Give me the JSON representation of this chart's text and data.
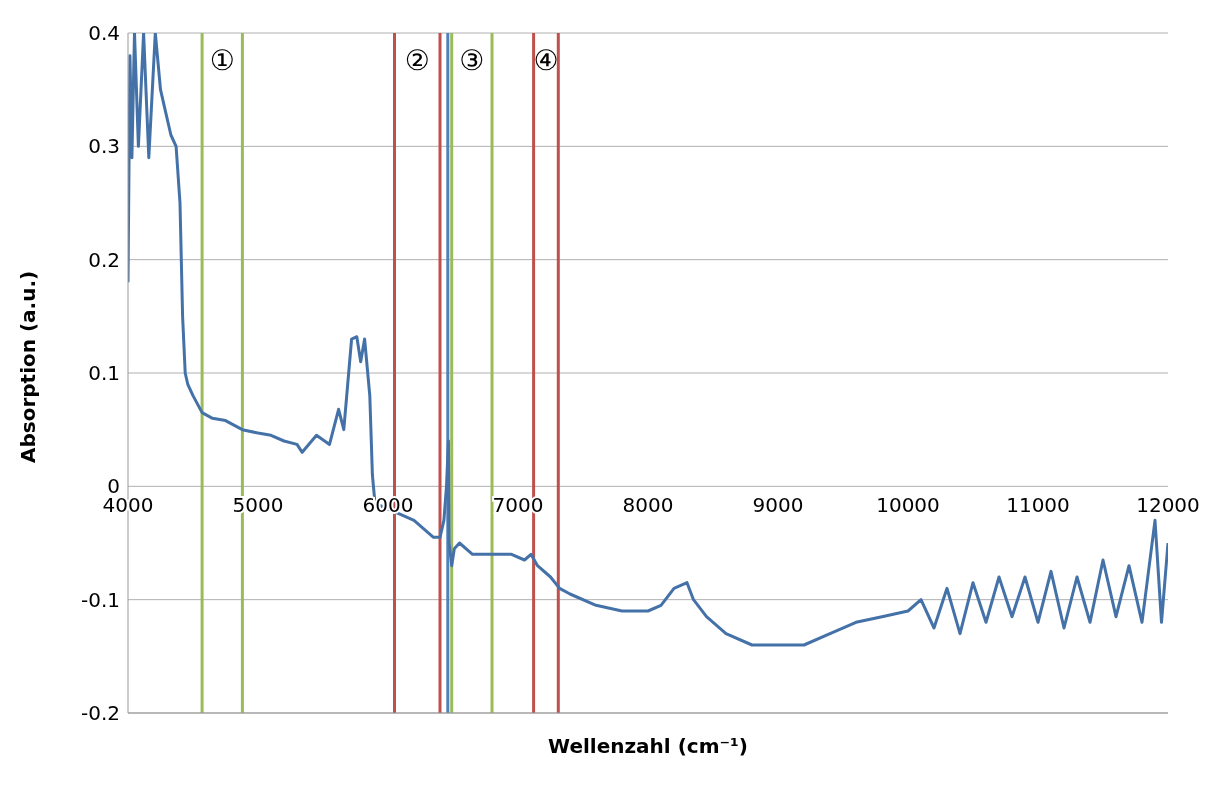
{
  "chart_data": {
    "type": "line",
    "xlabel": "Wellenzahl (cm⁻¹)",
    "ylabel": "Absorption (a.u.)",
    "x": [
      4000,
      4015,
      4030,
      4050,
      4080,
      4120,
      4160,
      4210,
      4250,
      4290,
      4330,
      4370,
      4400,
      4420,
      4440,
      4460,
      4500,
      4570,
      4650,
      4750,
      4880,
      5000,
      5100,
      5200,
      5300,
      5340,
      5450,
      5550,
      5620,
      5660,
      5720,
      5760,
      5790,
      5820,
      5860,
      5880,
      5900,
      6000,
      6100,
      6200,
      6350,
      6400,
      6430,
      6450,
      6465,
      6470,
      6490,
      6510,
      6550,
      6650,
      6800,
      6950,
      7050,
      7100,
      7150,
      7250,
      7320,
      7400,
      7600,
      7800,
      8000,
      8100,
      8200,
      8300,
      8350,
      8450,
      8600,
      8800,
      9000,
      9200,
      9400,
      9600,
      9800,
      10000,
      10100,
      10200,
      10300,
      10400,
      10500,
      10600,
      10700,
      10800,
      10900,
      11000,
      11100,
      11200,
      11300,
      11400,
      11500,
      11600,
      11700,
      11800,
      11900,
      11950,
      12000
    ],
    "series": [
      {
        "color": "#4472a8",
        "values": [
          0.18,
          0.38,
          0.29,
          0.4,
          0.3,
          0.4,
          0.29,
          0.4,
          0.35,
          0.33,
          0.31,
          0.3,
          0.25,
          0.15,
          0.1,
          0.09,
          0.08,
          0.065,
          0.06,
          0.058,
          0.05,
          0.047,
          0.045,
          0.04,
          0.037,
          0.03,
          0.045,
          0.037,
          0.068,
          0.05,
          0.13,
          0.132,
          0.11,
          0.13,
          0.08,
          0.01,
          -0.015,
          -0.02,
          -0.025,
          -0.03,
          -0.045,
          -0.045,
          -0.03,
          0.0,
          0.04,
          -0.05,
          -0.07,
          -0.055,
          -0.05,
          -0.06,
          -0.06,
          -0.06,
          -0.065,
          -0.06,
          -0.07,
          -0.08,
          -0.09,
          -0.095,
          -0.105,
          -0.11,
          -0.11,
          -0.105,
          -0.09,
          -0.085,
          -0.1,
          -0.115,
          -0.13,
          -0.14,
          -0.14,
          -0.14,
          -0.13,
          -0.12,
          -0.115,
          -0.11,
          -0.1,
          -0.125,
          -0.09,
          -0.13,
          -0.085,
          -0.12,
          -0.08,
          -0.115,
          -0.08,
          -0.12,
          -0.075,
          -0.125,
          -0.08,
          -0.12,
          -0.065,
          -0.115,
          -0.07,
          -0.12,
          -0.03,
          -0.12,
          -0.05
        ]
      }
    ],
    "xlim": [
      4000,
      12000
    ],
    "xticks": [
      4000,
      5000,
      6000,
      7000,
      8000,
      9000,
      10000,
      11000,
      12000
    ],
    "ylim": [
      -0.2,
      0.4
    ],
    "yticks": [
      -0.2,
      -0.1,
      0,
      0.1,
      0.2,
      0.3,
      0.4
    ],
    "grid": "y",
    "marker": "none",
    "line_style": "solid",
    "ref_lines": [
      {
        "axis": "x",
        "value": 4570,
        "color": "#9bbb59"
      },
      {
        "axis": "x",
        "value": 4880,
        "color": "#9bbb59"
      },
      {
        "axis": "x",
        "value": 6050,
        "color": "#c0504d"
      },
      {
        "axis": "x",
        "value": 6400,
        "color": "#c0504d"
      },
      {
        "axis": "x",
        "value": 6460,
        "color": "#4f81bd"
      },
      {
        "axis": "x",
        "value": 6490,
        "color": "#9bbb59"
      },
      {
        "axis": "x",
        "value": 6800,
        "color": "#9bbb59"
      },
      {
        "axis": "x",
        "value": 7120,
        "color": "#c0504d"
      },
      {
        "axis": "x",
        "value": 7310,
        "color": "#c0504d"
      }
    ],
    "annotations": [
      "①",
      "②",
      "③",
      "④"
    ]
  }
}
